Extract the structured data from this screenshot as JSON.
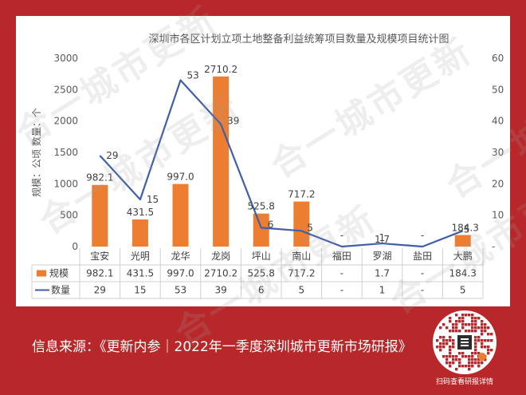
{
  "watermark": "合一城市更新",
  "source_text": "信息来源：《更新内参｜2022年一季度深圳城市更新市场研报》",
  "qr_caption": "扫码查看研报详情",
  "chart_data": {
    "type": "bar+line",
    "title": "深圳市各区计划立项土地整备利益统筹项目数量及规模项目统计图",
    "ylabel": "规模：公顷 数量：个",
    "ylim": [
      0,
      3000
    ],
    "y2lim": [
      0,
      60
    ],
    "yticks": [
      "0",
      "500",
      "1000",
      "1500",
      "2000",
      "2500",
      "3000"
    ],
    "y2ticks": [
      "-",
      "10",
      "20",
      "30",
      "40",
      "50",
      "60"
    ],
    "categories": [
      "宝安",
      "光明",
      "龙华",
      "龙岗",
      "坪山",
      "南山",
      "福田",
      "罗湖",
      "盐田",
      "大鹏"
    ],
    "series": [
      {
        "name": "规模",
        "kind": "bar",
        "color": "#ed7d31",
        "values": [
          982.1,
          431.5,
          997.0,
          2710.2,
          525.8,
          717.2,
          null,
          1.7,
          null,
          184.3
        ],
        "labels": [
          "982.1",
          "431.5",
          "997.0",
          "2710.2",
          "525.8",
          "717.2",
          "-",
          "1.7",
          "-",
          "184.3"
        ]
      },
      {
        "name": "数量",
        "kind": "line",
        "color": "#3f5fa8",
        "values": [
          29,
          15,
          53,
          39,
          6,
          5,
          0,
          1,
          0,
          5
        ],
        "labels": [
          "29",
          "15",
          "53",
          "39",
          "6",
          "5",
          "-",
          "1",
          "-",
          "5"
        ]
      }
    ]
  }
}
